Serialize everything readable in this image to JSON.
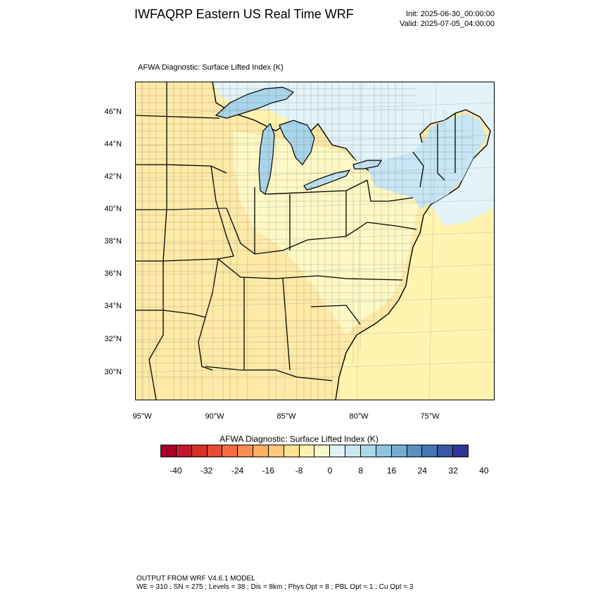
{
  "header": {
    "title": "IWFAQRP Eastern US Real Time WRF",
    "init": "Init: 2025-06-30_00:00:00",
    "valid": "Valid: 2025-07-05_04:00:00"
  },
  "map": {
    "subtitle": "AFWA Diagnostic: Surface Lifted Index   (K)",
    "lat_labels": [
      "46°N",
      "44°N",
      "42°N",
      "40°N",
      "38°N",
      "36°N",
      "34°N",
      "32°N",
      "30°N"
    ],
    "lon_labels": [
      "95°W",
      "90°W",
      "85°W",
      "80°W",
      "75°W"
    ],
    "colors": {
      "land_warm": "#fee9a8",
      "land_neutral": "#fdf8c6",
      "ocean_warm": "#fff3b0",
      "cool_light": "#e3f3f7",
      "cool_medium": "#c8e6f3",
      "lake_cool": "#a9d5ea",
      "border": "#000000"
    }
  },
  "colorbar": {
    "title": "AFWA Diagnostic: Surface Lifted Index  (K)",
    "tick_labels": [
      "-40",
      "-32",
      "-24",
      "-16",
      "-8",
      "0",
      "8",
      "16",
      "24",
      "32",
      "40"
    ],
    "colors": [
      "#a50026",
      "#c2172c",
      "#d73027",
      "#e54d35",
      "#f46d43",
      "#f88d52",
      "#fdae61",
      "#fec77b",
      "#fee090",
      "#fdf2b0",
      "#f3f9c8",
      "#e0f3f8",
      "#c9e6f1",
      "#abd9e9",
      "#90c3dd",
      "#74add1",
      "#5b8fc1",
      "#4575b4",
      "#3b56a4",
      "#313695"
    ]
  },
  "footer": {
    "line1": "OUTPUT FROM WRF V4.6.1 MODEL",
    "line2": "WE = 310 ; SN = 275 ; Levels = 38 ; Dis = 8km ; Phys Opt = 8 ; PBL Opt = 1 ; Cu Opt = 3"
  }
}
